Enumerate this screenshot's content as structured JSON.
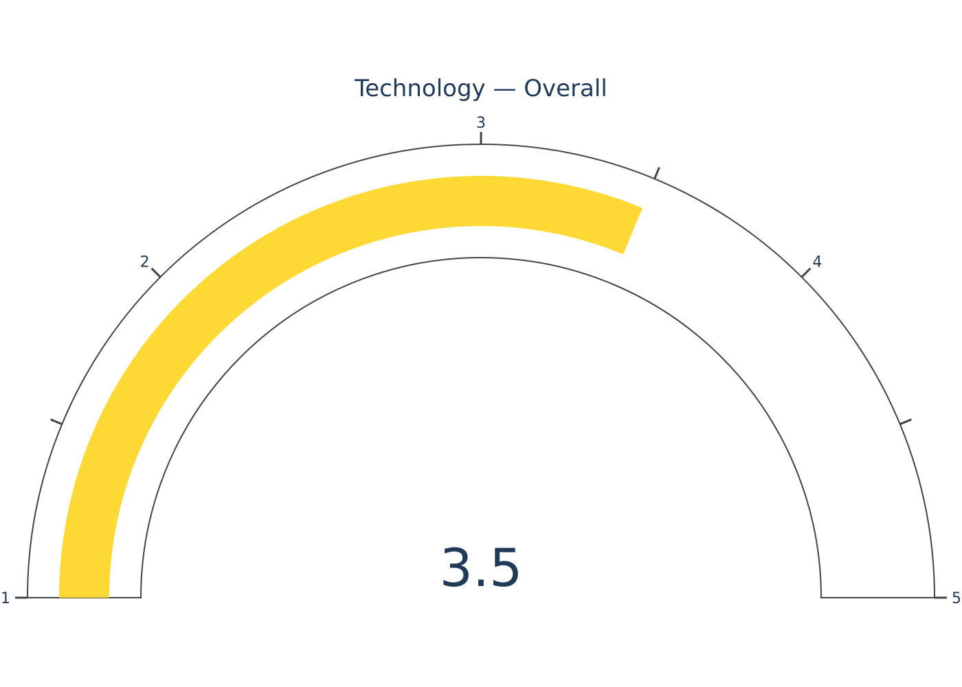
{
  "chart_data": {
    "type": "gauge",
    "title": "Technology — Overall",
    "value": 3.5,
    "value_label": "3.5",
    "range": [
      1,
      5
    ],
    "major_ticks": [
      1,
      2,
      3,
      4,
      5
    ],
    "tick_labels": [
      "1",
      "2",
      "3",
      "4",
      "5"
    ],
    "minor_ticks": [
      1.5,
      3.5,
      4.5
    ],
    "colors": {
      "bar": "#FCD934",
      "outline": "#444444",
      "text": "#213A59",
      "background": "#FFFFFF"
    }
  }
}
